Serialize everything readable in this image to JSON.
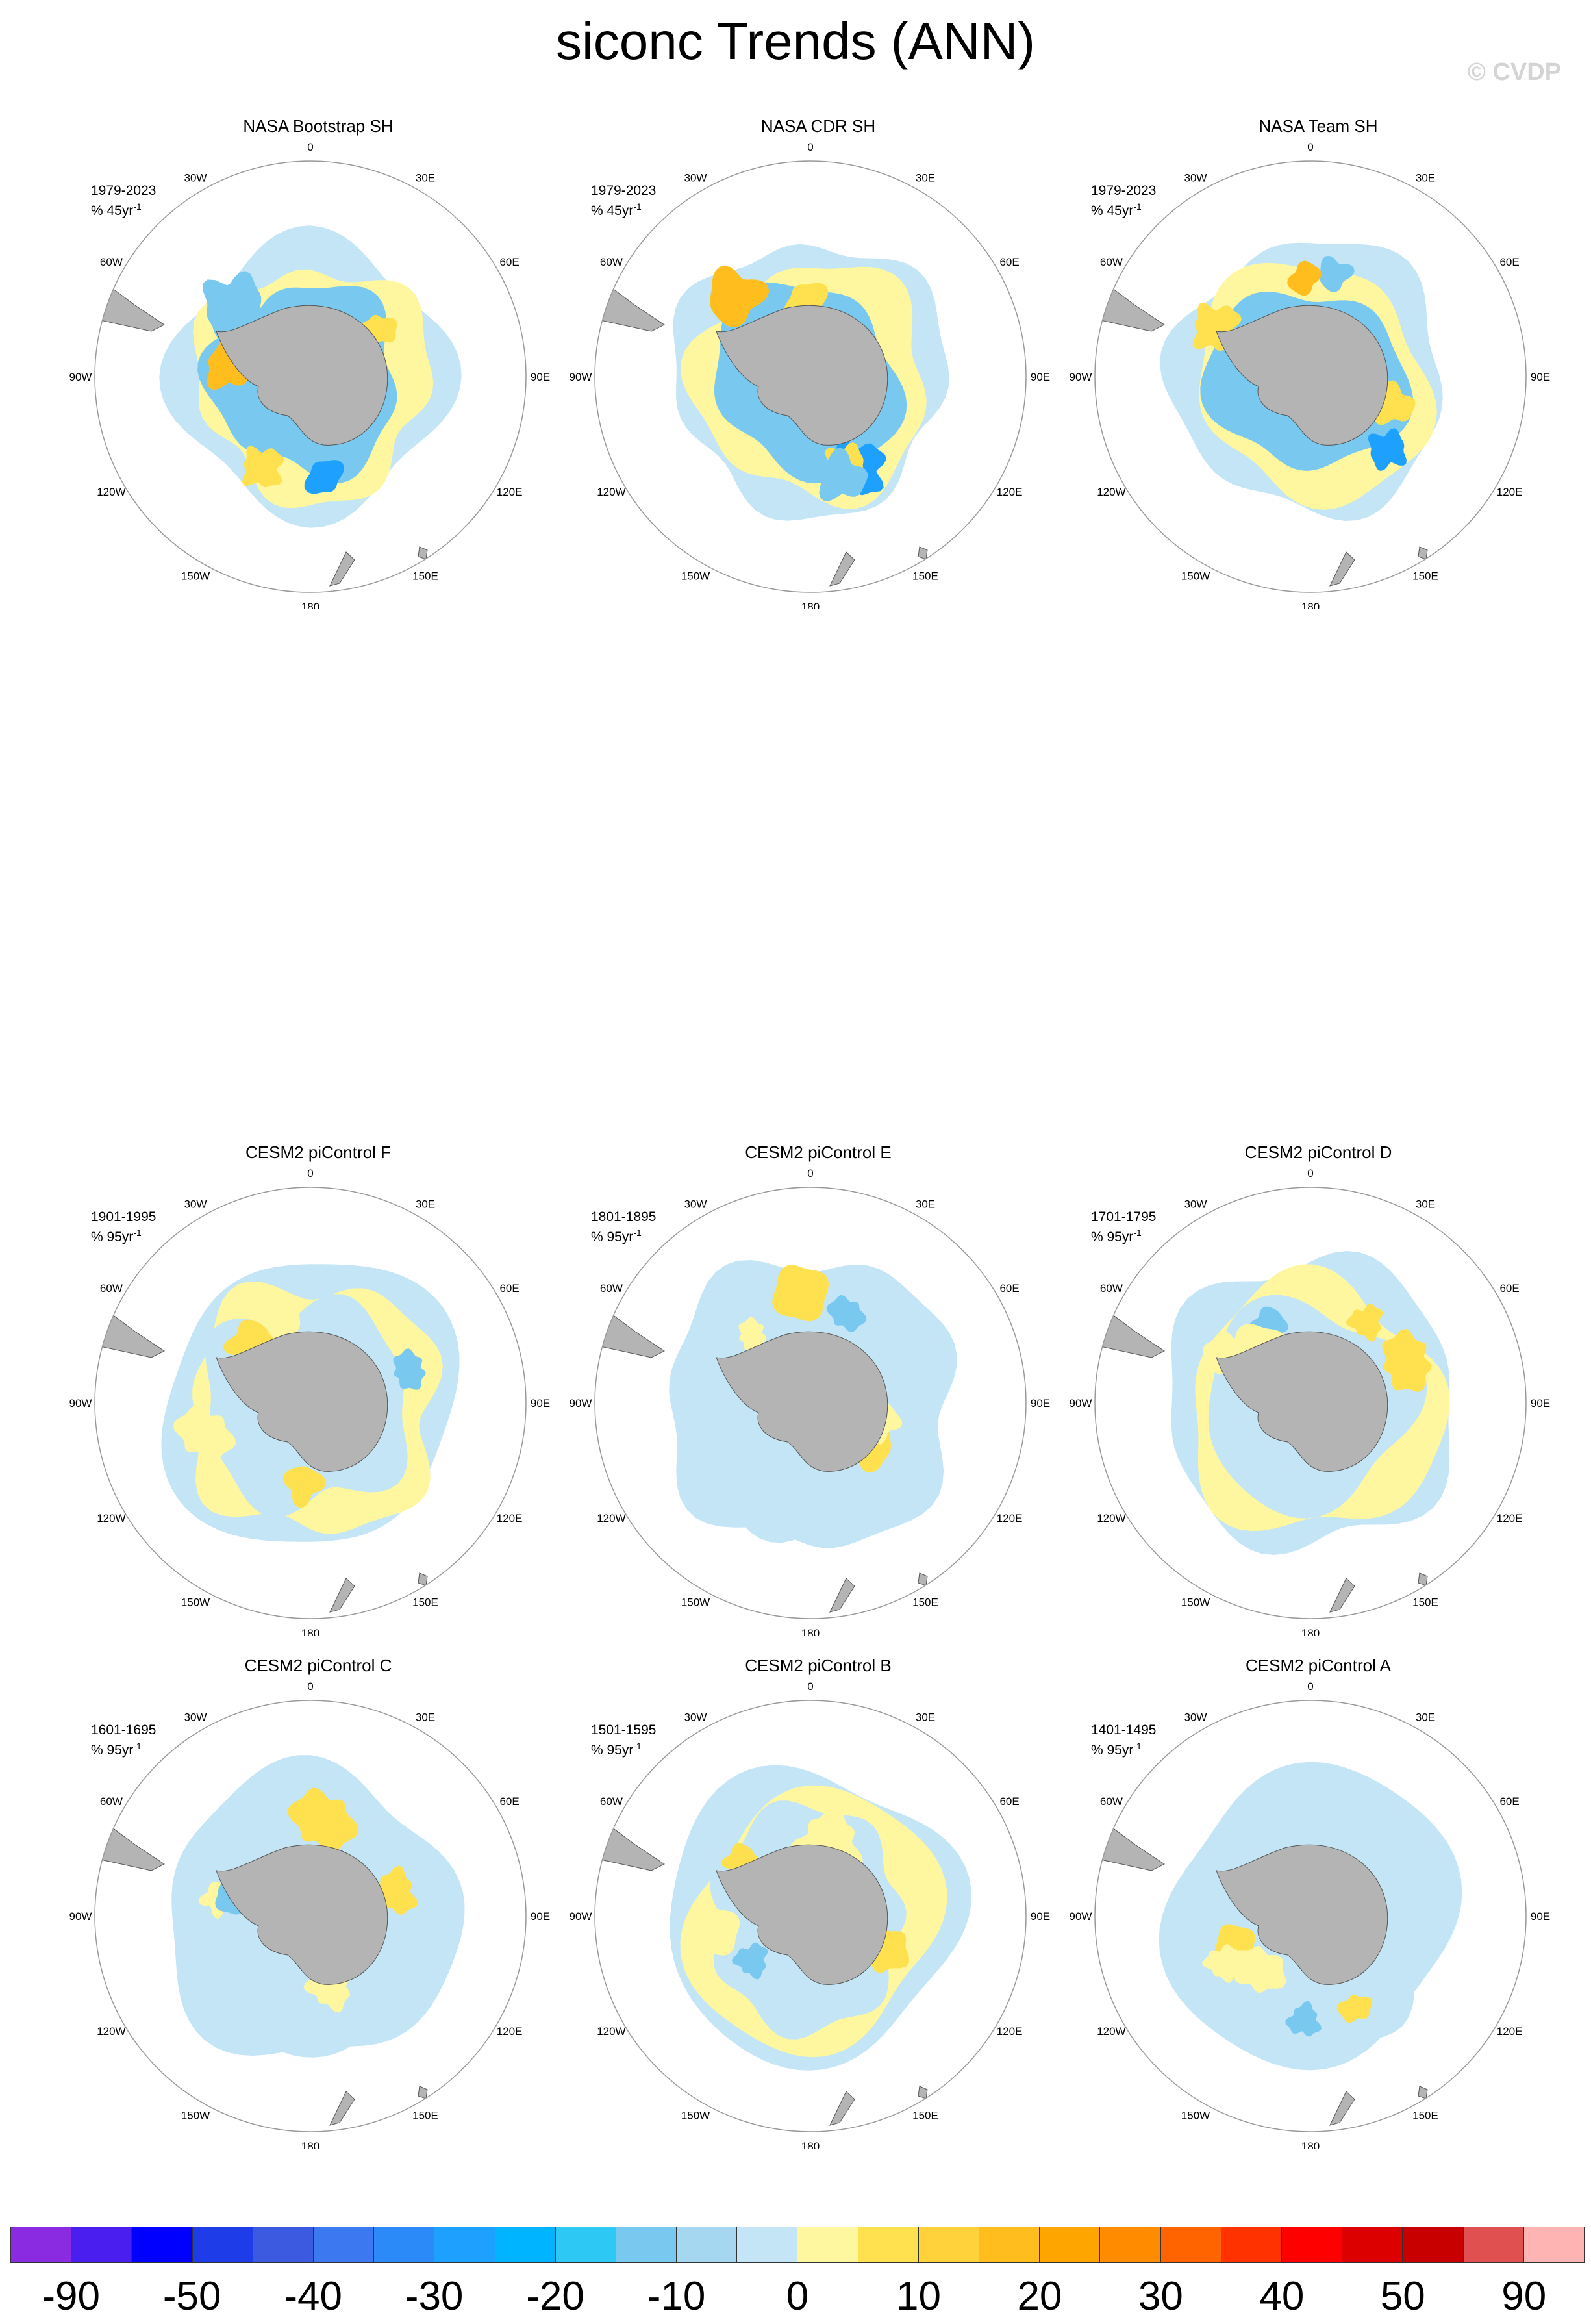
{
  "figure": {
    "title": "siconc Trends (ANN)",
    "watermark": "© CVDP"
  },
  "panels": [
    {
      "title": "NASA Bootstrap SH",
      "period": "1979-2023",
      "units_base": "% 45yr",
      "units_exp": "-1",
      "type": "obs",
      "seed": 11
    },
    {
      "title": "NASA CDR SH",
      "period": "1979-2023",
      "units_base": "% 45yr",
      "units_exp": "-1",
      "type": "obs",
      "seed": 12
    },
    {
      "title": "NASA Team SH",
      "period": "1979-2023",
      "units_base": "% 45yr",
      "units_exp": "-1",
      "type": "obs",
      "seed": 13
    },
    {
      "title": "CESM2 piControl F",
      "period": "1901-1995",
      "units_base": "% 95yr",
      "units_exp": "-1",
      "type": "model",
      "seed": 21
    },
    {
      "title": "CESM2 piControl E",
      "period": "1801-1895",
      "units_base": "% 95yr",
      "units_exp": "-1",
      "type": "model",
      "seed": 22
    },
    {
      "title": "CESM2 piControl D",
      "period": "1701-1795",
      "units_base": "% 95yr",
      "units_exp": "-1",
      "type": "model",
      "seed": 23
    },
    {
      "title": "CESM2 piControl C",
      "period": "1601-1695",
      "units_base": "% 95yr",
      "units_exp": "-1",
      "type": "model",
      "seed": 24
    },
    {
      "title": "CESM2 piControl B",
      "period": "1501-1595",
      "units_base": "% 95yr",
      "units_exp": "-1",
      "type": "model",
      "seed": 25
    },
    {
      "title": "CESM2 piControl A",
      "period": "1401-1495",
      "units_base": "% 95yr",
      "units_exp": "-1",
      "type": "model",
      "seed": 26
    }
  ],
  "lon_labels": [
    "0",
    "30E",
    "60E",
    "90E",
    "120E",
    "150E",
    "180",
    "150W",
    "120W",
    "90W",
    "60W",
    "30W"
  ],
  "colorbar": {
    "colors": [
      "#8a2be2",
      "#4b1ef0",
      "#0000ff",
      "#1e3ce8",
      "#3c5ae0",
      "#3c78f0",
      "#2b8af7",
      "#1ea0ff",
      "#00b4ff",
      "#2ec8f5",
      "#78c8f0",
      "#a5d7f0",
      "#c3e5f5",
      "#fff6a0",
      "#ffe150",
      "#ffd23c",
      "#ffbe1e",
      "#ffa500",
      "#ff8c00",
      "#ff6400",
      "#ff3200",
      "#ff0000",
      "#dc0000",
      "#c80000",
      "#e05050",
      "#ffb4b4"
    ],
    "labels": [
      "-90",
      "-50",
      "-40",
      "-30",
      "-20",
      "-10",
      "0",
      "10",
      "20",
      "30",
      "40",
      "50",
      "90"
    ]
  },
  "colors": {
    "land": "#b4b4b4",
    "weak_negative": "#c3e5f5",
    "moderate_negative": "#78c8f0",
    "strong_negative": "#1ea0ff",
    "weak_positive": "#fff6a0",
    "moderate_positive": "#ffe150",
    "strong_positive": "#ffbe1e"
  }
}
